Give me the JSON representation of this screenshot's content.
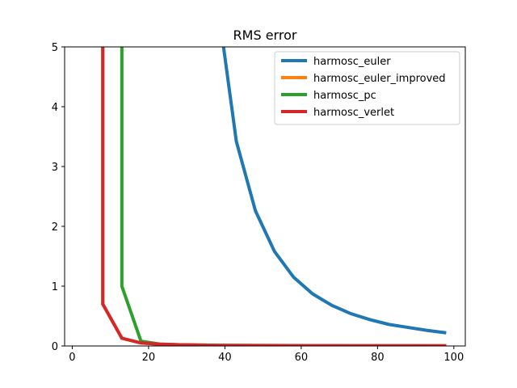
{
  "chart_data": {
    "type": "line",
    "title": "RMS error",
    "xlabel": "",
    "ylabel": "",
    "xlim": [
      -2,
      103
    ],
    "ylim": [
      0,
      5
    ],
    "xticks": [
      0,
      20,
      40,
      60,
      80,
      100
    ],
    "yticks": [
      0,
      1,
      2,
      3,
      4,
      5
    ],
    "grid": false,
    "legend_position": "top-right",
    "series": [
      {
        "name": "harmosc_euler",
        "color": "#1f77b4",
        "points": [
          [
            39,
            5.3
          ],
          [
            43,
            3.42
          ],
          [
            48,
            2.26
          ],
          [
            53,
            1.58
          ],
          [
            58,
            1.15
          ],
          [
            63,
            0.87
          ],
          [
            68,
            0.68
          ],
          [
            73,
            0.54
          ],
          [
            78,
            0.44
          ],
          [
            83,
            0.36
          ],
          [
            88,
            0.31
          ],
          [
            93,
            0.26
          ],
          [
            98,
            0.22
          ]
        ]
      },
      {
        "name": "harmosc_euler_improved",
        "color": "#ff7f0e",
        "points": [
          [
            8,
            5.3
          ],
          [
            8,
            0.7
          ],
          [
            13,
            0.13
          ],
          [
            18,
            0.05
          ],
          [
            23,
            0.03
          ],
          [
            28,
            0.02
          ],
          [
            33,
            0.015
          ],
          [
            38,
            0.01
          ],
          [
            48,
            0.008
          ],
          [
            58,
            0.006
          ],
          [
            68,
            0.005
          ],
          [
            78,
            0.004
          ],
          [
            88,
            0.003
          ],
          [
            98,
            0.003
          ]
        ]
      },
      {
        "name": "harmosc_pc",
        "color": "#2ca02c",
        "points": [
          [
            13,
            5.3
          ],
          [
            13,
            1.0
          ],
          [
            18,
            0.08
          ],
          [
            23,
            0.03
          ],
          [
            28,
            0.02
          ],
          [
            38,
            0.01
          ],
          [
            48,
            0.007
          ],
          [
            58,
            0.005
          ],
          [
            68,
            0.004
          ],
          [
            78,
            0.003
          ],
          [
            88,
            0.003
          ],
          [
            98,
            0.002
          ]
        ]
      },
      {
        "name": "harmosc_verlet",
        "color": "#d62728",
        "points": [
          [
            8,
            5.3
          ],
          [
            8,
            0.7
          ],
          [
            13,
            0.13
          ],
          [
            18,
            0.05
          ],
          [
            23,
            0.03
          ],
          [
            28,
            0.02
          ],
          [
            33,
            0.015
          ],
          [
            38,
            0.01
          ],
          [
            48,
            0.008
          ],
          [
            58,
            0.006
          ],
          [
            68,
            0.005
          ],
          [
            78,
            0.004
          ],
          [
            88,
            0.003
          ],
          [
            98,
            0.003
          ]
        ]
      }
    ]
  }
}
